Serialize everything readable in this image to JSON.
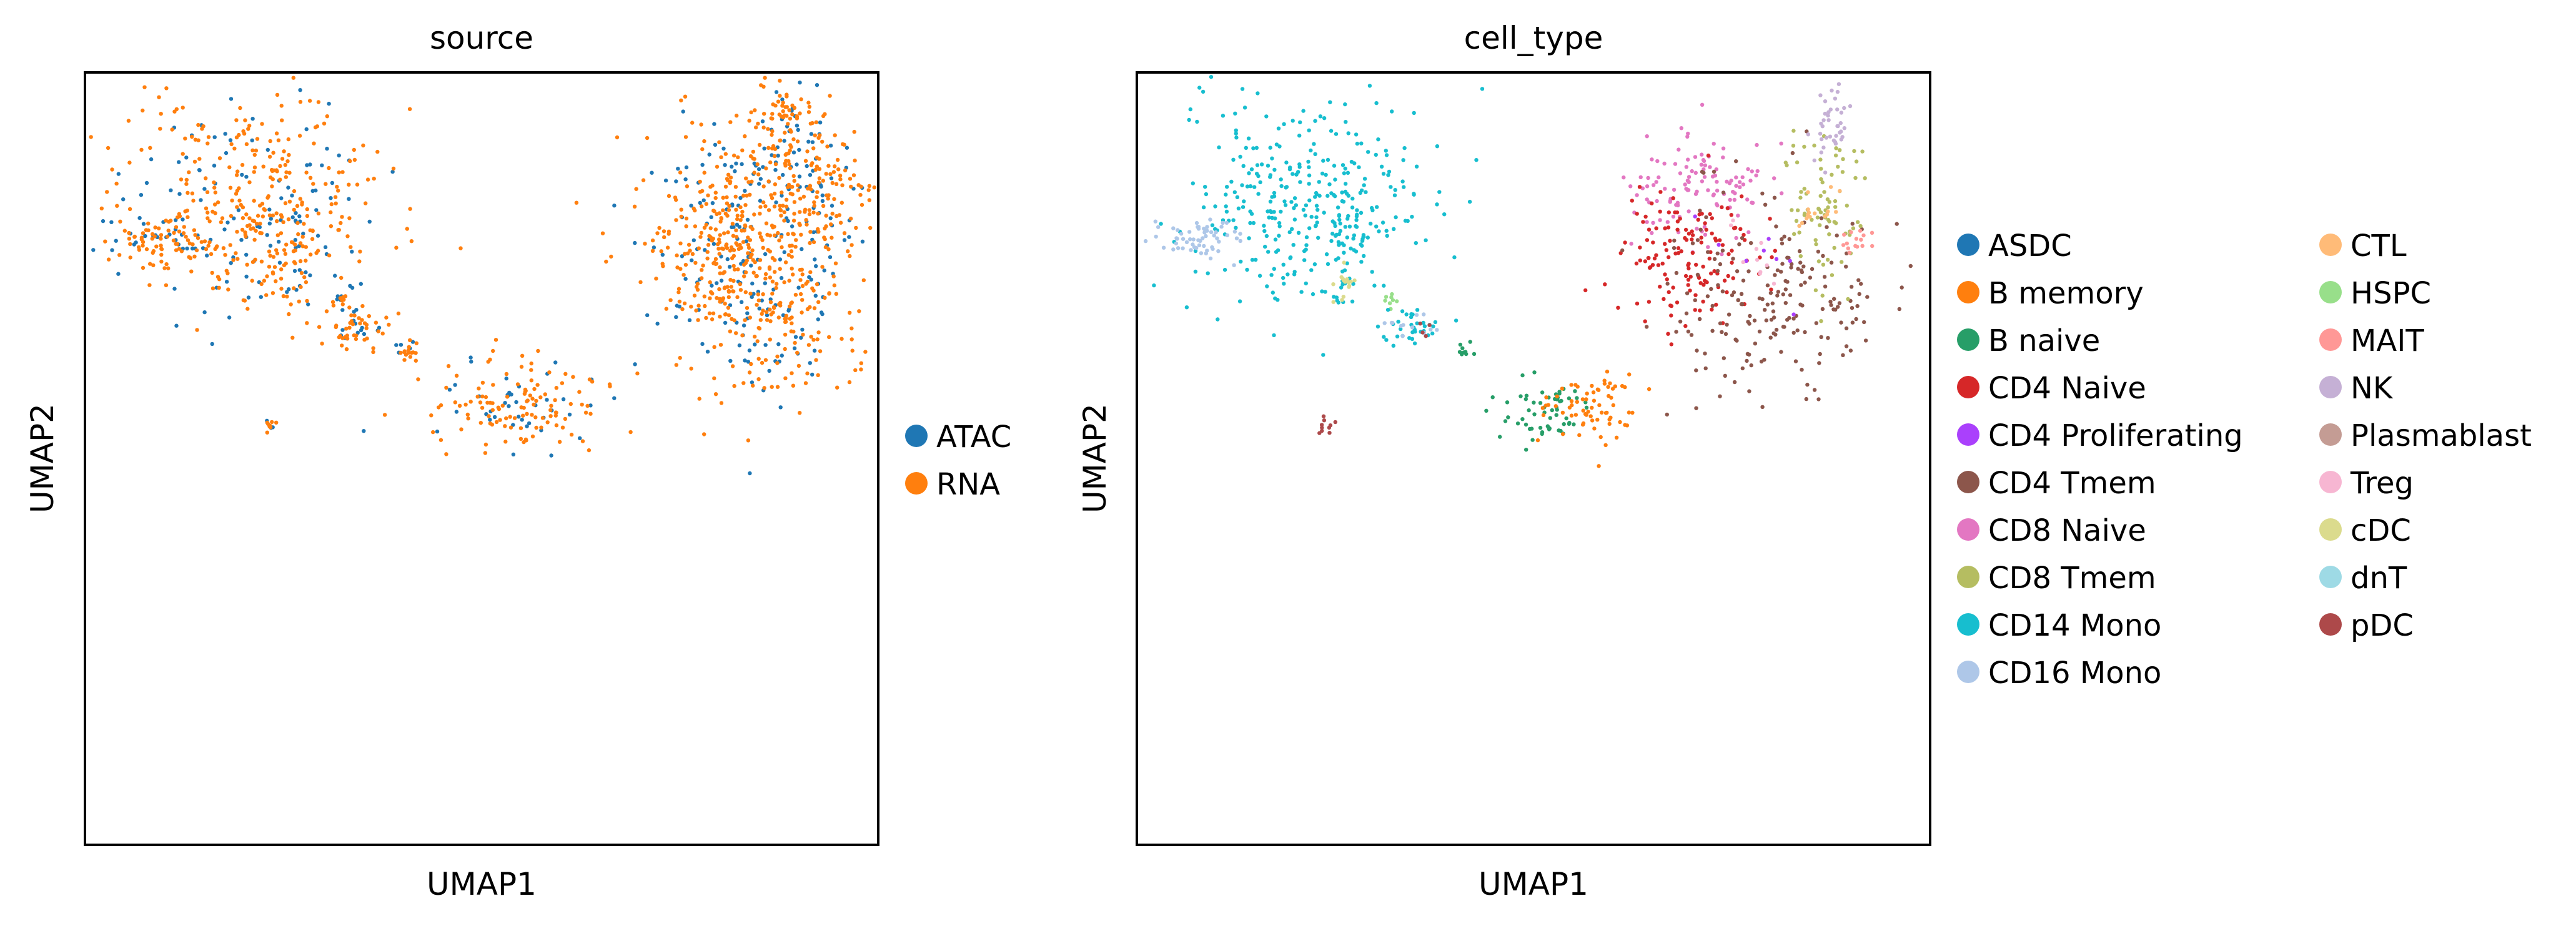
{
  "chart_data": [
    {
      "type": "scatter",
      "title": "source",
      "xlabel": "UMAP1",
      "ylabel": "UMAP2",
      "grid": false,
      "legend_position": "right",
      "series": [
        {
          "name": "ATAC",
          "color": "#1f77b4"
        },
        {
          "name": "RNA",
          "color": "#ff7f0e"
        }
      ]
    },
    {
      "type": "scatter",
      "title": "cell_type",
      "xlabel": "UMAP1",
      "ylabel": "UMAP2",
      "grid": false,
      "legend_position": "right",
      "series": [
        {
          "name": "ASDC",
          "color": "#1f77b4"
        },
        {
          "name": "B memory",
          "color": "#ff7f0e"
        },
        {
          "name": "B naive",
          "color": "#279e68"
        },
        {
          "name": "CD4 Naive",
          "color": "#d62728"
        },
        {
          "name": "CD4 Proliferating",
          "color": "#aa40fc"
        },
        {
          "name": "CD4 Tmem",
          "color": "#8c564b"
        },
        {
          "name": "CD8 Naive",
          "color": "#e377c2"
        },
        {
          "name": "CD8 Tmem",
          "color": "#b5bd61"
        },
        {
          "name": "CD14 Mono",
          "color": "#17becf"
        },
        {
          "name": "CD16 Mono",
          "color": "#aec7e8"
        },
        {
          "name": "CTL",
          "color": "#ffbb78"
        },
        {
          "name": "HSPC",
          "color": "#98df8a"
        },
        {
          "name": "MAIT",
          "color": "#ff9896"
        },
        {
          "name": "NK",
          "color": "#c5b0d5"
        },
        {
          "name": "Plasmablast",
          "color": "#c49c94"
        },
        {
          "name": "Treg",
          "color": "#f7b6d2"
        },
        {
          "name": "cDC",
          "color": "#dbdb8d"
        },
        {
          "name": "dnT",
          "color": "#9edae5"
        },
        {
          "name": "pDC",
          "color": "#ad494a"
        }
      ]
    }
  ]
}
